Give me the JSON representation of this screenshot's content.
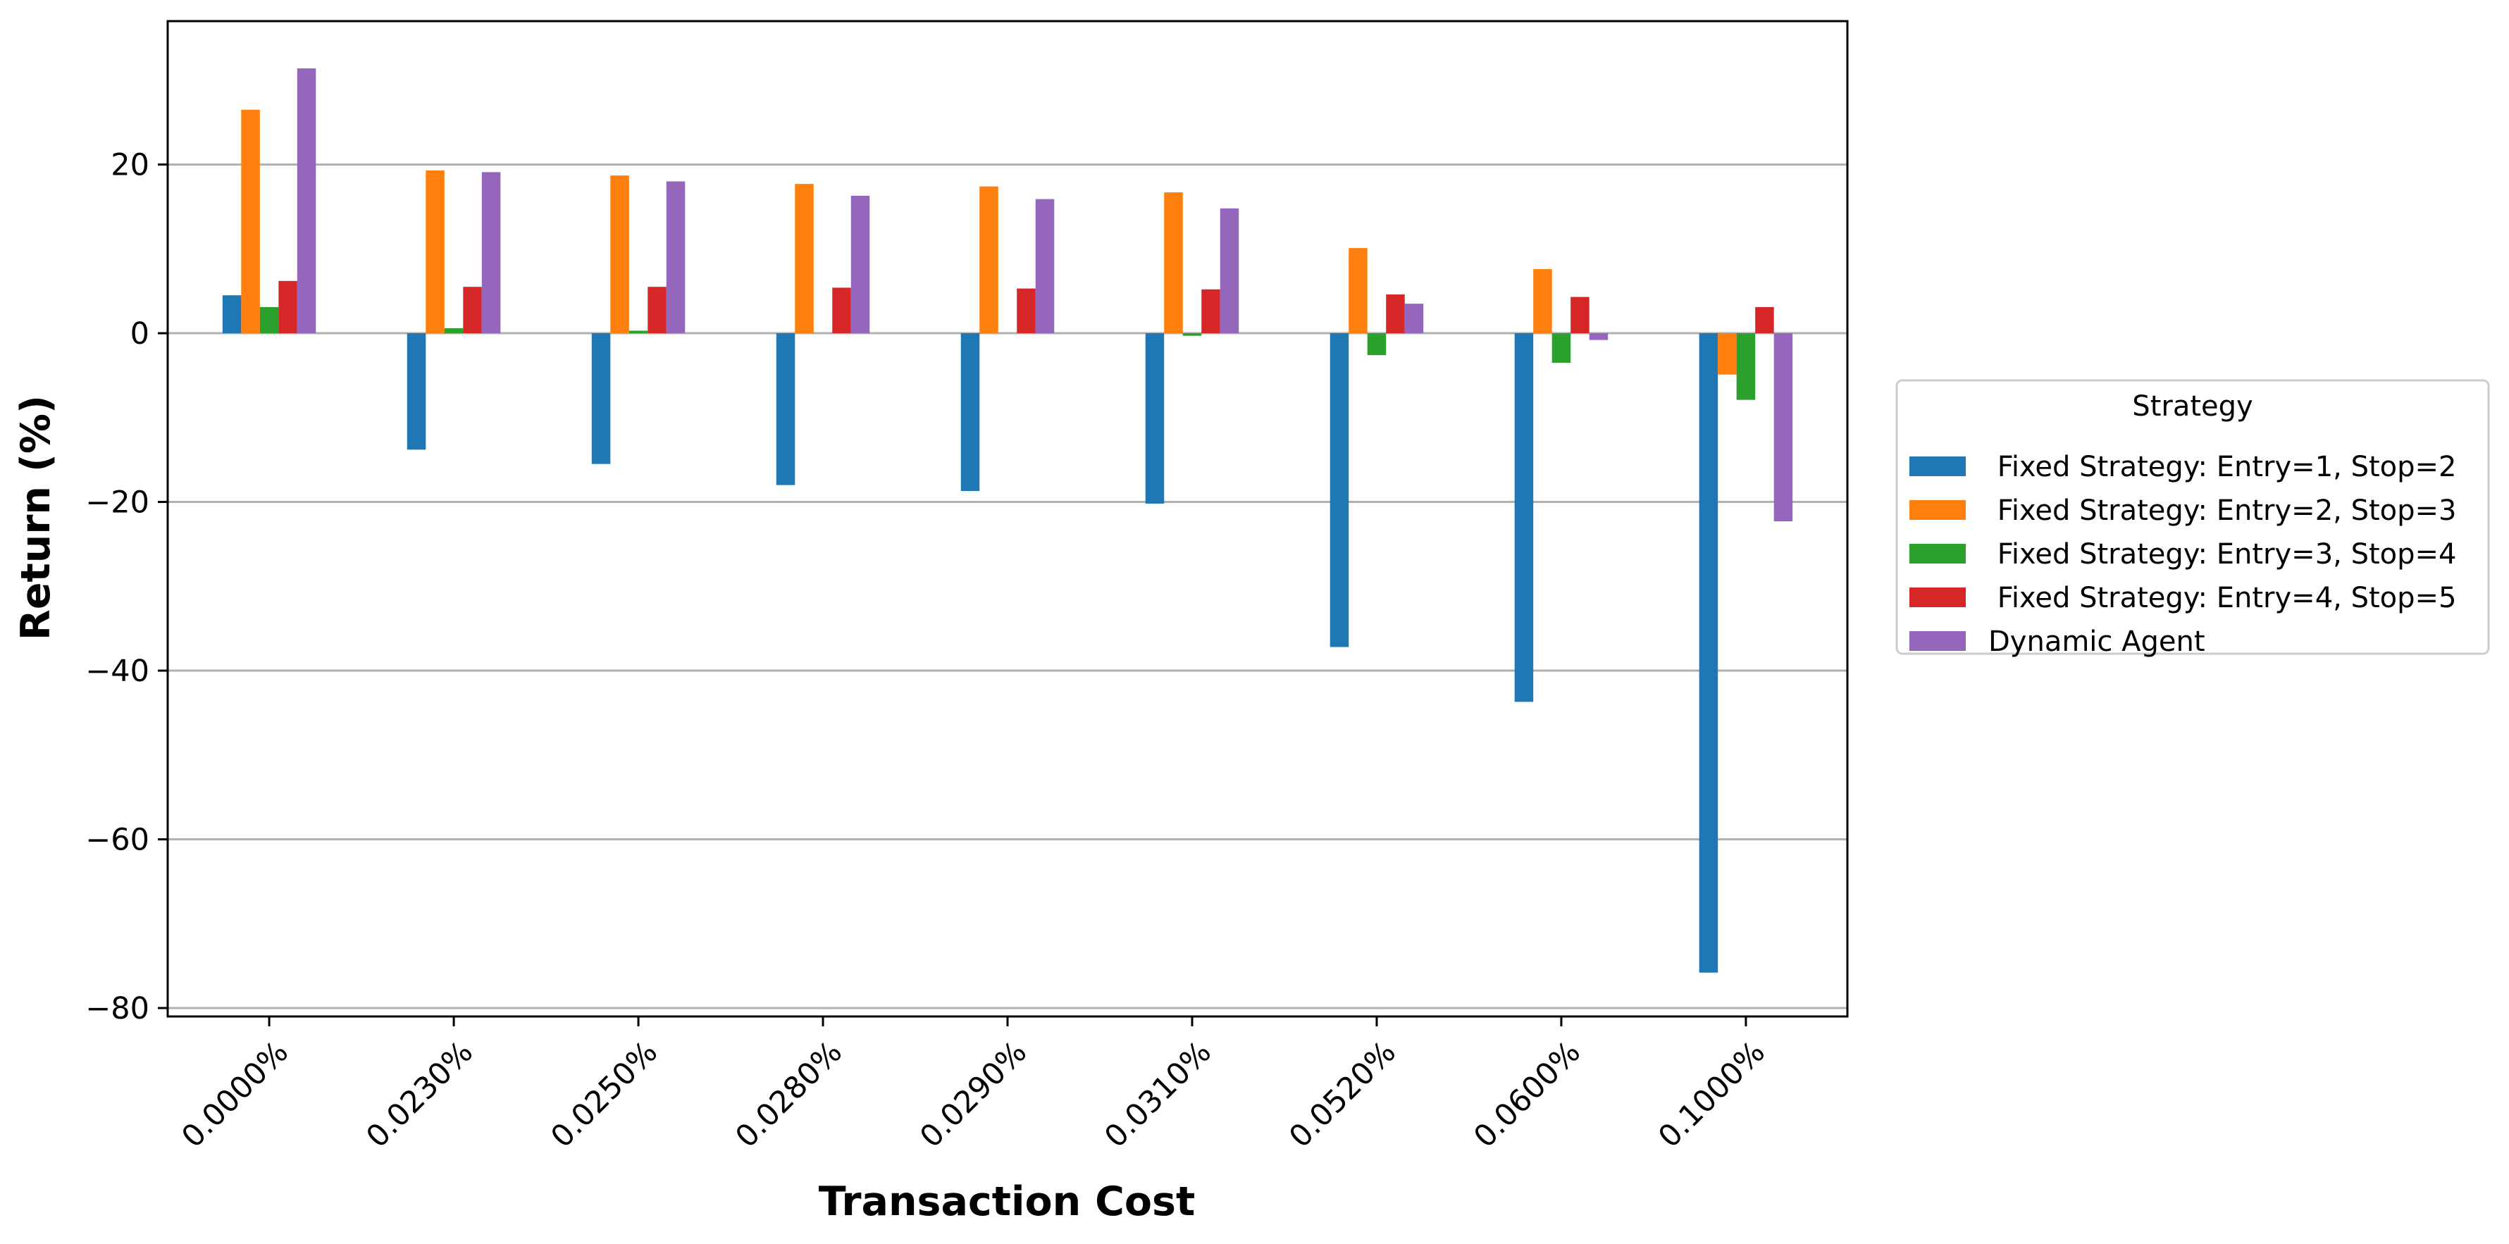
{
  "chart_data": {
    "type": "bar",
    "title": "",
    "xlabel": "Transaction Cost",
    "ylabel": "Return (%)",
    "categories": [
      "0.0000%",
      "0.0230%",
      "0.0250%",
      "0.0280%",
      "0.0290%",
      "0.0310%",
      "0.0520%",
      "0.0600%",
      "0.1000%"
    ],
    "ylim": [
      -81,
      37
    ],
    "yticks": [
      20,
      0,
      -20,
      -40,
      -60,
      -80
    ],
    "yticklabels": [
      "20",
      "0",
      "−20",
      "−40",
      "−60",
      "−80"
    ],
    "grid": "horizontal",
    "legend": {
      "title": "Strategy",
      "placement": "right, outside plot"
    },
    "series": [
      {
        "name": " Fixed Strategy: Entry=1, Stop=2",
        "color": "#1f77b4",
        "values": [
          4.5,
          -13.8,
          -15.5,
          -18.0,
          -18.7,
          -20.2,
          -37.2,
          -43.7,
          -75.8
        ]
      },
      {
        "name": " Fixed Strategy: Entry=2, Stop=3",
        "color": "#ff7f0e",
        "values": [
          26.5,
          19.3,
          18.7,
          17.7,
          17.4,
          16.7,
          10.1,
          7.6,
          -4.9
        ]
      },
      {
        "name": " Fixed Strategy: Entry=3, Stop=4",
        "color": "#2ca02c",
        "values": [
          3.1,
          0.6,
          0.3,
          0.0,
          0.0,
          -0.3,
          -2.6,
          -3.5,
          -7.9
        ]
      },
      {
        "name": " Fixed Strategy: Entry=4, Stop=5",
        "color": "#d62728",
        "values": [
          6.2,
          5.5,
          5.5,
          5.4,
          5.3,
          5.2,
          4.6,
          4.3,
          3.1
        ]
      },
      {
        "name": "Dynamic Agent",
        "color": "#9467bd",
        "values": [
          31.4,
          19.1,
          18.0,
          16.3,
          15.9,
          14.8,
          3.5,
          -0.8,
          -22.3
        ]
      }
    ]
  }
}
